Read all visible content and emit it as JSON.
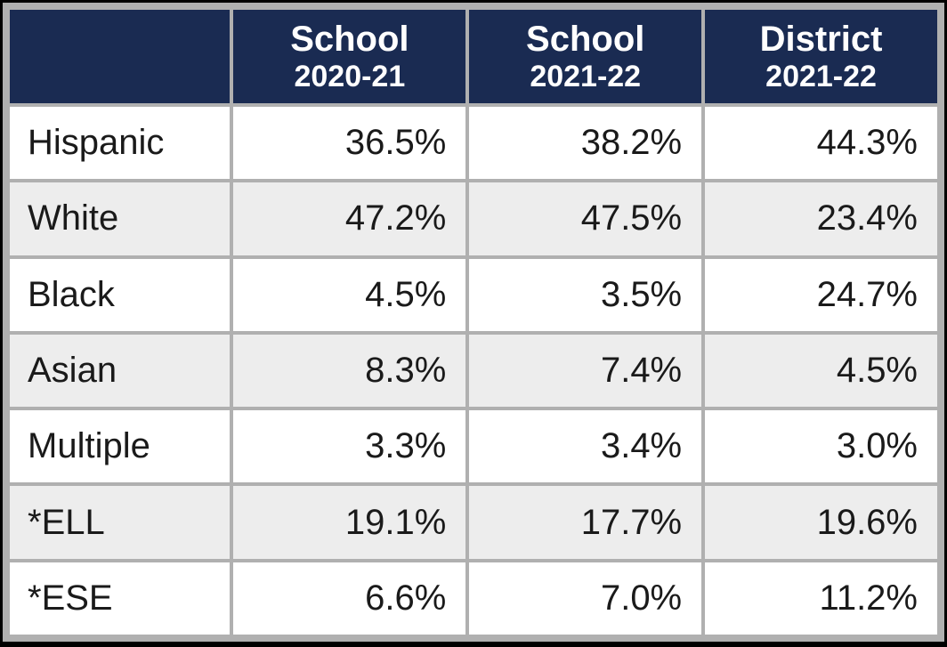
{
  "table": {
    "type": "table",
    "background_color": "#ffffff",
    "frame_color": "#000000",
    "grid_gap_color": "#b0b0b0",
    "header_bg": "#1a2b52",
    "header_text_color": "#ffffff",
    "row_alt_bg": "#ededed",
    "row_bg": "#ffffff",
    "text_color": "#1a1a1a",
    "header_top_fontsize": 40,
    "header_sub_fontsize": 34,
    "cell_fontsize": 40,
    "column_widths_pct": [
      24,
      25.3,
      25.3,
      25.3
    ],
    "rowlabel_align": "left",
    "value_align": "right",
    "columns": [
      {
        "top": "",
        "sub": ""
      },
      {
        "top": "School",
        "sub": "2020-21"
      },
      {
        "top": "School",
        "sub": "2021-22"
      },
      {
        "top": "District",
        "sub": "2021-22"
      }
    ],
    "rows": [
      {
        "label": "Hispanic",
        "values": [
          "36.5%",
          "38.2%",
          "44.3%"
        ]
      },
      {
        "label": "White",
        "values": [
          "47.2%",
          "47.5%",
          "23.4%"
        ]
      },
      {
        "label": "Black",
        "values": [
          "4.5%",
          "3.5%",
          "24.7%"
        ]
      },
      {
        "label": "Asian",
        "values": [
          "8.3%",
          "7.4%",
          "4.5%"
        ]
      },
      {
        "label": "Multiple",
        "values": [
          "3.3%",
          "3.4%",
          "3.0%"
        ]
      },
      {
        "label": "*ELL",
        "values": [
          "19.1%",
          "17.7%",
          "19.6%"
        ]
      },
      {
        "label": "*ESE",
        "values": [
          "6.6%",
          "7.0%",
          "11.2%"
        ]
      }
    ]
  }
}
